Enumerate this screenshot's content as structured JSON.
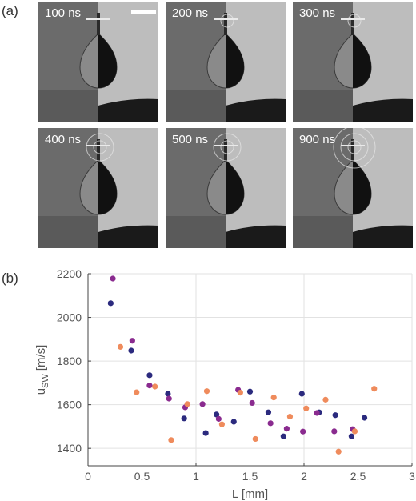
{
  "panel_a": {
    "label": "(a)",
    "frames": [
      {
        "time": "100 ns",
        "scale_bar": true,
        "rings": 0
      },
      {
        "time": "200 ns",
        "scale_bar": false,
        "rings": 1
      },
      {
        "time": "300 ns",
        "scale_bar": false,
        "rings": 1
      },
      {
        "time": "400 ns",
        "scale_bar": false,
        "rings": 2
      },
      {
        "time": "500 ns",
        "scale_bar": false,
        "rings": 2
      },
      {
        "time": "900 ns",
        "scale_bar": false,
        "rings": 3
      }
    ]
  },
  "panel_b": {
    "label": "(b)"
  },
  "chart_data": {
    "type": "scatter",
    "xlabel": "L [mm]",
    "ylabel_main": "u",
    "ylabel_sub": "SW",
    "ylabel_unit": "[m/s]",
    "xlim": [
      0,
      3
    ],
    "ylim": [
      1320,
      2200
    ],
    "xticks": [
      0,
      0.5,
      1,
      1.5,
      2,
      2.5,
      3
    ],
    "xtick_labels": [
      "0",
      "0.5",
      "1",
      "1.5",
      "2",
      "2.5",
      "3"
    ],
    "yticks": [
      1400,
      1600,
      1800,
      2000,
      2200
    ],
    "ytick_labels": [
      "1400",
      "1600",
      "1800",
      "2000",
      "2200"
    ],
    "grid": true,
    "series": [
      {
        "color": "#2b2a7e",
        "x": [
          0.21,
          0.4,
          0.57,
          0.74,
          0.89,
          1.09,
          1.19,
          1.35,
          1.5,
          1.67,
          1.81,
          1.98,
          2.14,
          2.29,
          2.44,
          2.56
        ],
        "y": [
          2065,
          1848,
          1735,
          1650,
          1537,
          1470,
          1555,
          1522,
          1660,
          1565,
          1455,
          1650,
          1565,
          1552,
          1455,
          1540
        ]
      },
      {
        "color": "#8a2b8f",
        "x": [
          0.23,
          0.41,
          0.57,
          0.75,
          0.9,
          1.06,
          1.21,
          1.39,
          1.52,
          1.69,
          1.84,
          1.99,
          2.12,
          2.28,
          2.45
        ],
        "y": [
          2178,
          1893,
          1688,
          1628,
          1588,
          1603,
          1535,
          1668,
          1608,
          1515,
          1490,
          1477,
          1562,
          1478,
          1488
        ]
      },
      {
        "color": "#ef8b5c",
        "x": [
          0.3,
          0.45,
          0.62,
          0.77,
          0.92,
          1.1,
          1.24,
          1.41,
          1.55,
          1.72,
          1.87,
          2.02,
          2.2,
          2.32,
          2.47,
          2.65
        ],
        "y": [
          1865,
          1657,
          1683,
          1438,
          1603,
          1662,
          1510,
          1655,
          1443,
          1633,
          1545,
          1583,
          1623,
          1385,
          1478,
          1673
        ]
      }
    ]
  }
}
